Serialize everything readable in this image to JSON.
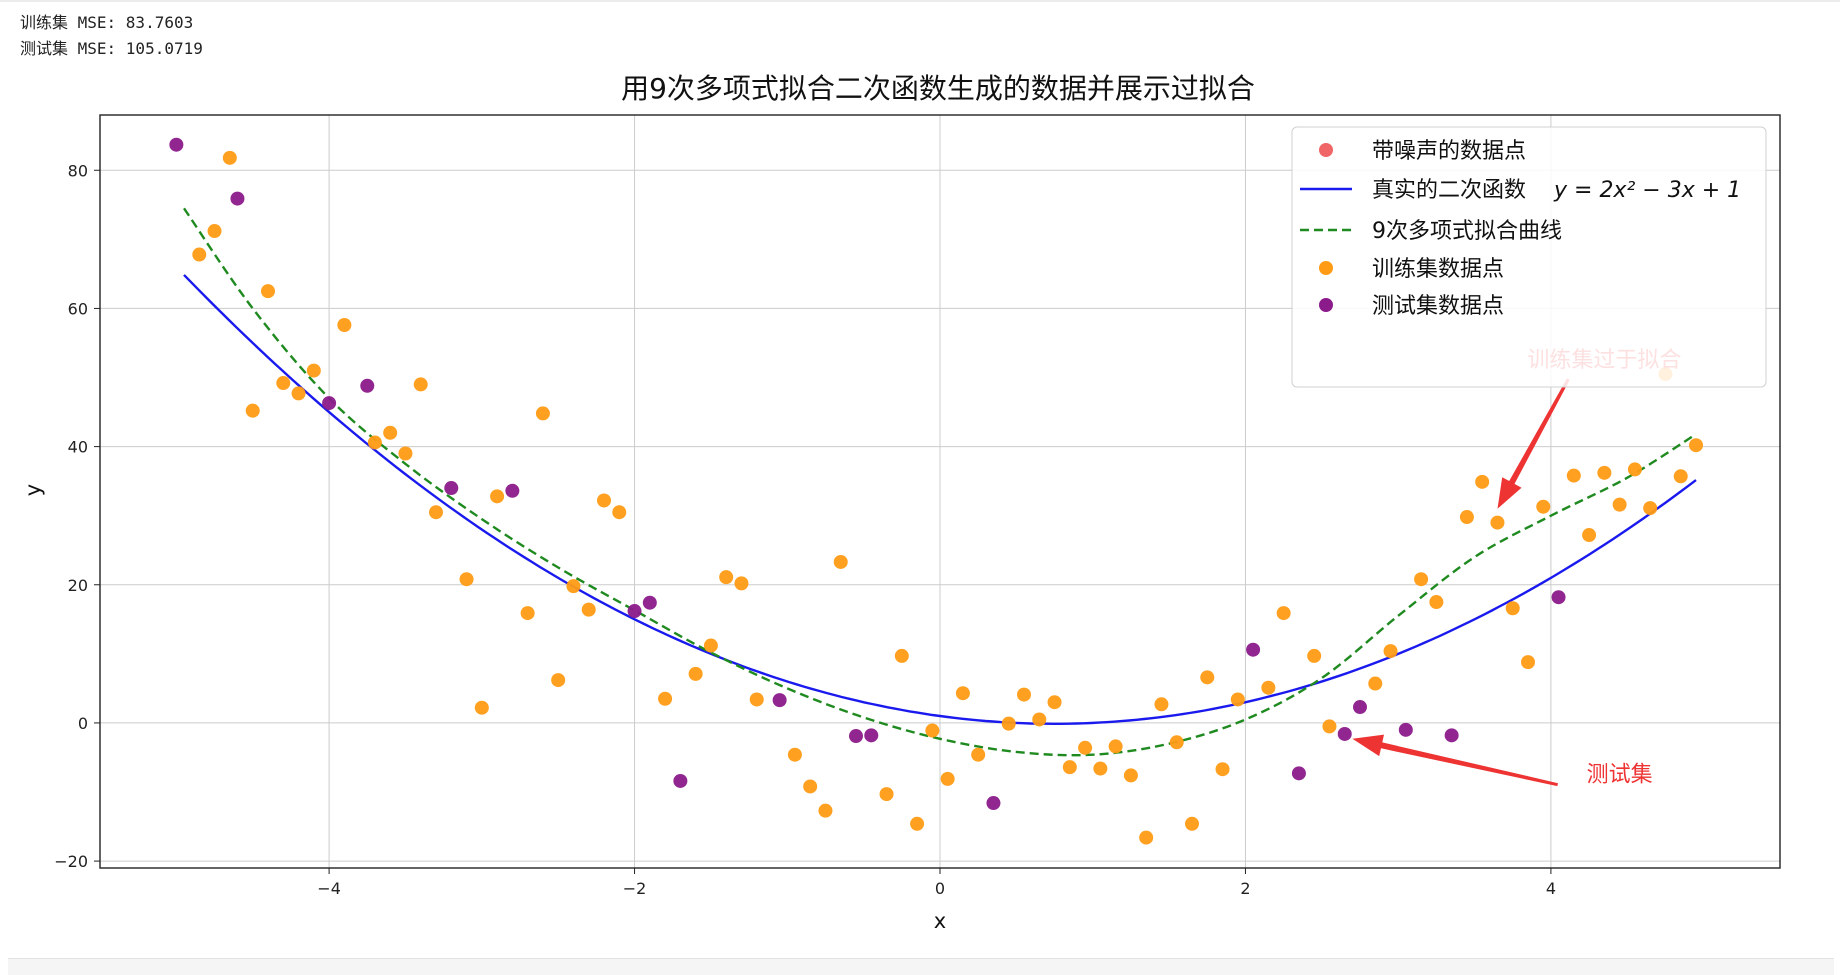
{
  "console": {
    "train_mse": "训练集 MSE: 83.7603",
    "test_mse": "测试集 MSE: 105.0719"
  },
  "colors": {
    "noisy": "#f06666",
    "true_curve": "#1a1aee",
    "fit_curve": "#1f8a1f",
    "train": "#ff9b14",
    "test": "#8b1a8b",
    "annotation": "#ee3333",
    "grid": "#cccccc"
  },
  "chart_data": {
    "type": "scatter",
    "title": "用9次多项式拟合二次函数生成的数据并展示过拟合",
    "xlabel": "x",
    "ylabel": "y",
    "xlim": [
      -5.5,
      5.5
    ],
    "ylim": [
      -21,
      88
    ],
    "xticks": [
      -4,
      -2,
      0,
      2,
      4
    ],
    "yticks": [
      -20,
      0,
      20,
      40,
      60,
      80
    ],
    "xtick_labels": [
      "−4",
      "−2",
      "0",
      "2",
      "4"
    ],
    "ytick_labels": [
      "−20",
      "0",
      "20",
      "40",
      "60",
      "80"
    ],
    "grid": true,
    "legend_position": "upper right",
    "legend": [
      {
        "key": "noisy",
        "label": "带噪声的数据点",
        "marker": "dot"
      },
      {
        "key": "true",
        "label": "真实的二次函数",
        "formula": "y = 2x² − 3x + 1",
        "marker": "line"
      },
      {
        "key": "fit",
        "label": "9次多项式拟合曲线",
        "marker": "dash"
      },
      {
        "key": "train",
        "label": "训练集数据点",
        "marker": "dot"
      },
      {
        "key": "test",
        "label": "测试集数据点",
        "marker": "dot"
      }
    ],
    "true_function": {
      "a": 2,
      "b": -3,
      "c": 1,
      "x_range": [
        -4.95,
        4.95
      ]
    },
    "fit_curve": {
      "x": [
        -4.95,
        -4.5,
        -4.0,
        -3.5,
        -3.0,
        -2.5,
        -2.0,
        -1.5,
        -1.0,
        -0.5,
        0.0,
        0.5,
        1.0,
        1.5,
        2.0,
        2.5,
        3.0,
        3.5,
        4.0,
        4.5,
        4.95
      ],
      "y": [
        74.5,
        60,
        47,
        37.5,
        29.5,
        22.5,
        16.3,
        10.2,
        5.0,
        0.8,
        -2.3,
        -4.2,
        -4.6,
        -3.0,
        0.5,
        6.5,
        15.5,
        24.0,
        30.0,
        35.5,
        41.8
      ]
    },
    "train_points": {
      "x": [
        -4.85,
        -4.75,
        -4.65,
        -4.5,
        -4.4,
        -4.3,
        -4.2,
        -4.1,
        -3.9,
        -3.7,
        -3.6,
        -3.5,
        -3.4,
        -3.3,
        -3.1,
        -3.0,
        -2.9,
        -2.7,
        -2.6,
        -2.5,
        -2.4,
        -2.3,
        -2.2,
        -2.1,
        -1.8,
        -1.6,
        -1.5,
        -1.4,
        -1.3,
        -1.2,
        -0.95,
        -0.85,
        -0.75,
        -0.65,
        -0.35,
        -0.25,
        -0.15,
        -0.05,
        0.05,
        0.15,
        0.25,
        0.45,
        0.55,
        0.65,
        0.75,
        0.85,
        0.95,
        1.05,
        1.15,
        1.25,
        1.35,
        1.45,
        1.55,
        1.65,
        1.75,
        1.85,
        1.95,
        2.15,
        2.25,
        2.45,
        2.55,
        2.85,
        2.95,
        3.15,
        3.25,
        3.45,
        3.55,
        3.65,
        3.75,
        3.85,
        3.95,
        4.15,
        4.25,
        4.35,
        4.45,
        4.55,
        4.65,
        4.75,
        4.85,
        4.95
      ],
      "y": [
        67.8,
        71.2,
        81.8,
        45.2,
        62.5,
        49.2,
        47.7,
        51.0,
        57.6,
        40.6,
        42.0,
        39.0,
        49.0,
        30.5,
        20.8,
        2.2,
        32.8,
        15.9,
        44.8,
        6.2,
        19.8,
        16.4,
        32.2,
        30.5,
        3.5,
        7.1,
        11.2,
        21.1,
        20.2,
        3.4,
        -4.6,
        -9.2,
        -12.7,
        23.3,
        -10.3,
        9.7,
        -14.6,
        -1.1,
        -8.1,
        4.3,
        -4.6,
        -0.1,
        4.1,
        0.5,
        3.0,
        -6.4,
        -3.6,
        -6.6,
        -3.4,
        -7.6,
        -16.6,
        2.7,
        -2.8,
        -14.6,
        6.6,
        -6.7,
        3.4,
        5.1,
        15.9,
        9.7,
        -0.5,
        5.7,
        10.4,
        20.8,
        17.5,
        29.8,
        34.9,
        29.0,
        16.6,
        8.8,
        31.3,
        35.8,
        27.2,
        36.2,
        31.6,
        36.7,
        31.1,
        50.5,
        35.7,
        40.2
      ]
    },
    "test_points": {
      "x": [
        -5.0,
        -4.6,
        -4.0,
        -3.75,
        -3.2,
        -2.8,
        -2.0,
        -1.9,
        -1.7,
        -1.05,
        -0.55,
        -0.45,
        0.35,
        2.05,
        2.35,
        2.65,
        2.75,
        3.05,
        3.35,
        4.05
      ],
      "y": [
        83.7,
        75.9,
        46.3,
        48.8,
        34.0,
        33.6,
        16.2,
        17.4,
        -8.4,
        3.3,
        -1.9,
        -1.8,
        -11.6,
        10.6,
        -7.3,
        -1.6,
        2.3,
        -1.0,
        -1.8,
        18.2
      ]
    },
    "annotations": [
      {
        "text": "训练集过于拟合",
        "tip": [
          3.65,
          31.0
        ],
        "text_xy": [
          4.35,
          51.5
        ]
      },
      {
        "text": "测试集",
        "tip": [
          2.7,
          -2.3
        ],
        "text_xy": [
          4.45,
          -8.5
        ]
      }
    ]
  }
}
